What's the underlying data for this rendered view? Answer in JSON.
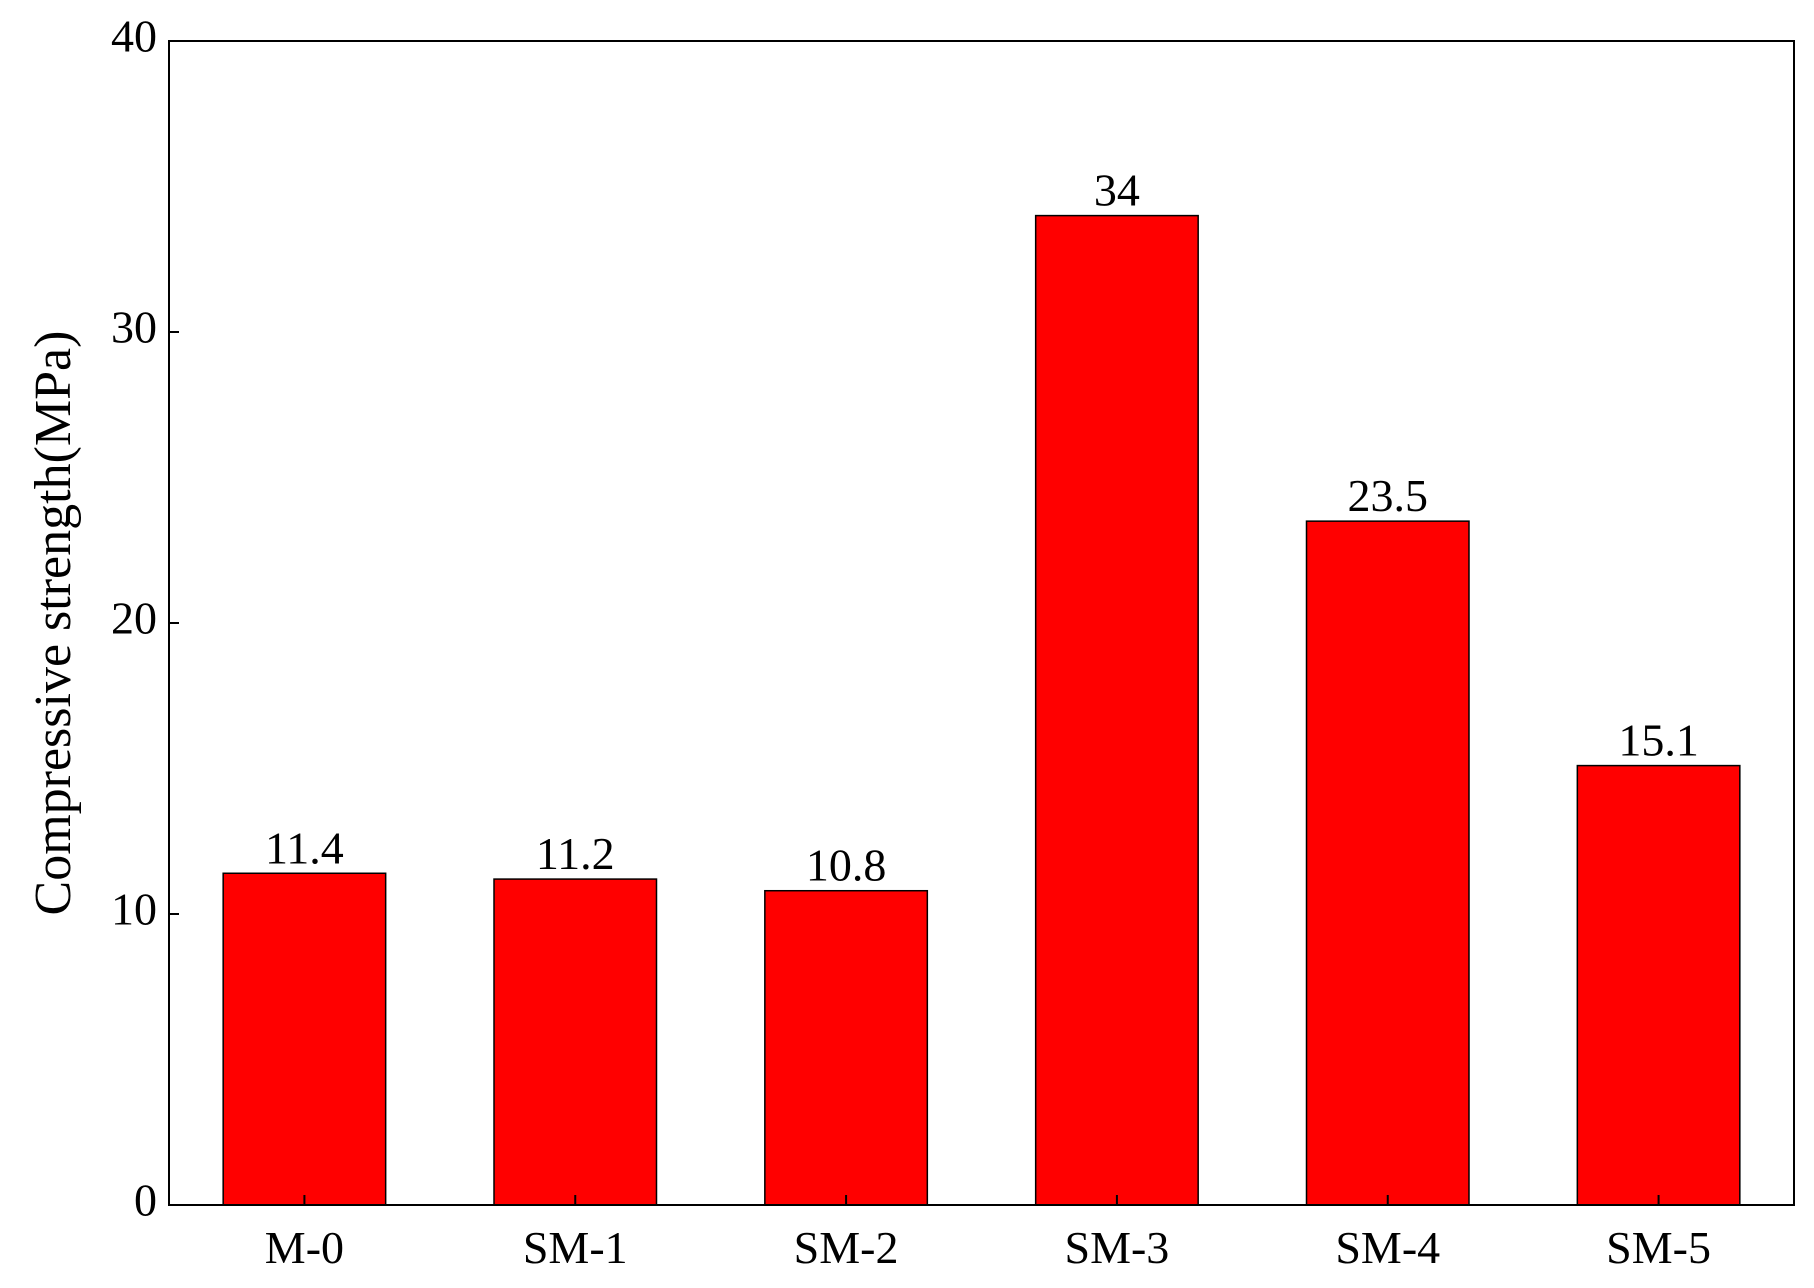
{
  "chart_data": {
    "type": "bar",
    "y_label": "Compressive strength(MPa)",
    "categories": [
      "M-0",
      "SM-1",
      "SM-2",
      "SM-3",
      "SM-4",
      "SM-5"
    ],
    "values": [
      11.4,
      11.2,
      10.8,
      34,
      23.5,
      15.1
    ],
    "color": "#ff0000",
    "ylim": [
      0,
      40
    ],
    "yticks": [
      0,
      10,
      20,
      30,
      40
    ],
    "grid": false
  }
}
